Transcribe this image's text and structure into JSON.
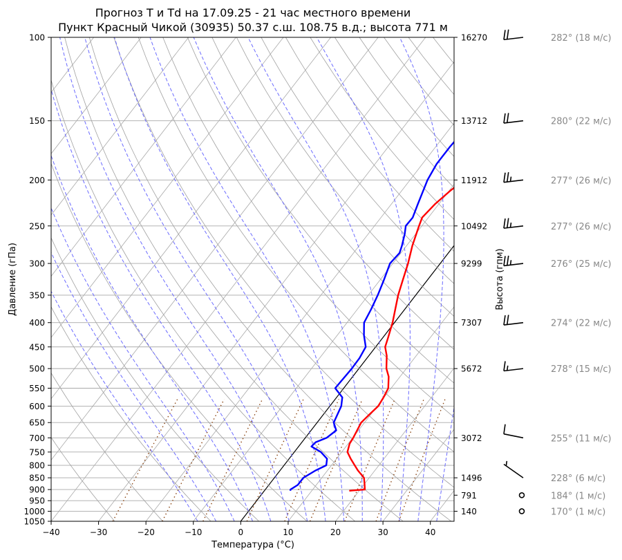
{
  "chart_data": {
    "type": "line",
    "title": "Прогноз T и Td на 17.09.25 - 21 час местного времени",
    "subtitle": "Пункт Красный Чикой (30935) 50.37 с.ш. 108.75 в.д.; высота 771 м",
    "xlabel": "Температура (°C)",
    "ylabel": "Давление (гПа)",
    "ylabel_right": "Высота (гпм)",
    "xlim": [
      -40,
      45
    ],
    "ylim": [
      1050,
      100
    ],
    "y_scale": "log",
    "grid": true,
    "x_ticks": [
      "−40",
      "−30",
      "−20",
      "−10",
      "0",
      "10",
      "20",
      "30",
      "40"
    ],
    "x_tick_values": [
      -40,
      -30,
      -20,
      -10,
      0,
      10,
      20,
      30,
      40
    ],
    "p_ticks": [
      100,
      150,
      200,
      250,
      300,
      350,
      400,
      450,
      500,
      550,
      600,
      650,
      700,
      750,
      800,
      850,
      900,
      950,
      1000,
      1050
    ],
    "height_ticks": [
      {
        "p": 100,
        "label": "16270"
      },
      {
        "p": 150,
        "label": "13712"
      },
      {
        "p": 200,
        "label": "11912"
      },
      {
        "p": 250,
        "label": "10492"
      },
      {
        "p": 300,
        "label": "9299"
      },
      {
        "p": 400,
        "label": "7307"
      },
      {
        "p": 500,
        "label": "5672"
      },
      {
        "p": 700,
        "label": "3072"
      },
      {
        "p": 850,
        "label": "1496"
      },
      {
        "p": 925,
        "label": "791"
      },
      {
        "p": 1000,
        "label": "140"
      }
    ],
    "series": [
      {
        "name": "T",
        "color": "#ff0000",
        "points": [
          [
            905,
            17.9
          ],
          [
            900,
            21.0
          ],
          [
            880,
            20.2
          ],
          [
            850,
            18.9
          ],
          [
            820,
            16.4
          ],
          [
            800,
            14.9
          ],
          [
            775,
            13.0
          ],
          [
            750,
            11.2
          ],
          [
            720,
            10.3
          ],
          [
            700,
            10.1
          ],
          [
            675,
            9.7
          ],
          [
            650,
            9.3
          ],
          [
            625,
            9.7
          ],
          [
            600,
            10.2
          ],
          [
            575,
            9.9
          ],
          [
            550,
            9.4
          ],
          [
            520,
            7.6
          ],
          [
            500,
            5.8
          ],
          [
            470,
            3.8
          ],
          [
            450,
            2.0
          ],
          [
            430,
            1.1
          ],
          [
            400,
            -0.4
          ],
          [
            375,
            -2.0
          ],
          [
            350,
            -3.7
          ],
          [
            325,
            -5.2
          ],
          [
            300,
            -6.8
          ],
          [
            275,
            -8.8
          ],
          [
            250,
            -10.6
          ],
          [
            240,
            -11.3
          ],
          [
            225,
            -10.8
          ],
          [
            210,
            -9.7
          ],
          [
            200,
            -8.4
          ],
          [
            185,
            -6.0
          ],
          [
            170,
            -3.3
          ],
          [
            150,
            0.8
          ],
          [
            130,
            4.7
          ],
          [
            115,
            8.2
          ],
          [
            100,
            12.4
          ]
        ]
      },
      {
        "name": "Td",
        "color": "#0000ff",
        "points": [
          [
            905,
            5.5
          ],
          [
            900,
            5.3
          ],
          [
            880,
            6.1
          ],
          [
            850,
            6.1
          ],
          [
            820,
            7.5
          ],
          [
            800,
            8.9
          ],
          [
            775,
            8.0
          ],
          [
            750,
            5.6
          ],
          [
            730,
            2.7
          ],
          [
            715,
            2.9
          ],
          [
            700,
            4.5
          ],
          [
            675,
            5.3
          ],
          [
            650,
            3.5
          ],
          [
            600,
            2.4
          ],
          [
            575,
            1.2
          ],
          [
            550,
            -1.8
          ],
          [
            500,
            -1.5
          ],
          [
            475,
            -1.6
          ],
          [
            450,
            -2.1
          ],
          [
            425,
            -4.4
          ],
          [
            400,
            -6.4
          ],
          [
            375,
            -7.1
          ],
          [
            350,
            -8.0
          ],
          [
            325,
            -9.2
          ],
          [
            300,
            -10.6
          ],
          [
            285,
            -10.3
          ],
          [
            275,
            -11.0
          ],
          [
            260,
            -12.3
          ],
          [
            250,
            -13.4
          ],
          [
            240,
            -13.3
          ],
          [
            225,
            -14.4
          ],
          [
            200,
            -16.3
          ],
          [
            185,
            -17.0
          ],
          [
            170,
            -17.0
          ],
          [
            150,
            -16.5
          ],
          [
            130,
            -16.1
          ],
          [
            115,
            -15.7
          ],
          [
            100,
            -16.0
          ]
        ]
      }
    ],
    "wind": [
      {
        "p": 100,
        "label": "282° (18 м/с)"
      },
      {
        "p": 150,
        "label": "280° (22 м/с)"
      },
      {
        "p": 200,
        "label": "277° (26 м/с)"
      },
      {
        "p": 250,
        "label": "277° (26 м/с)"
      },
      {
        "p": 300,
        "label": "276° (25 м/с)"
      },
      {
        "p": 400,
        "label": "274° (22 м/с)"
      },
      {
        "p": 500,
        "label": "278° (15 м/с)"
      },
      {
        "p": 700,
        "label": "255° (11 м/с)"
      },
      {
        "p": 850,
        "label": "228° (6 м/с)"
      },
      {
        "p": 925,
        "label": "184° (1 м/с)"
      },
      {
        "p": 1000,
        "label": "170° (1 м/с)"
      }
    ],
    "wind_barbs": [
      {
        "p": 100,
        "speed": 18
      },
      {
        "p": 150,
        "speed": 22
      },
      {
        "p": 200,
        "speed": 26
      },
      {
        "p": 250,
        "speed": 26
      },
      {
        "p": 300,
        "speed": 25
      },
      {
        "p": 400,
        "speed": 22
      },
      {
        "p": 500,
        "speed": 15
      },
      {
        "p": 700,
        "speed": 11
      },
      {
        "p": 850,
        "speed": 6
      },
      {
        "p": 925,
        "speed": 1
      },
      {
        "p": 1000,
        "speed": 1
      }
    ],
    "colors": {
      "temperature": "#ff0000",
      "dewpoint": "#0000ff",
      "dry_adiabats": "#a0a0a0",
      "moist_adiabats": "#6a6aff",
      "mixing_ratio": "#8b4513",
      "isotherm_zero": "#000000",
      "wind_label": "#888888",
      "grid": "#a9a9a9"
    }
  }
}
